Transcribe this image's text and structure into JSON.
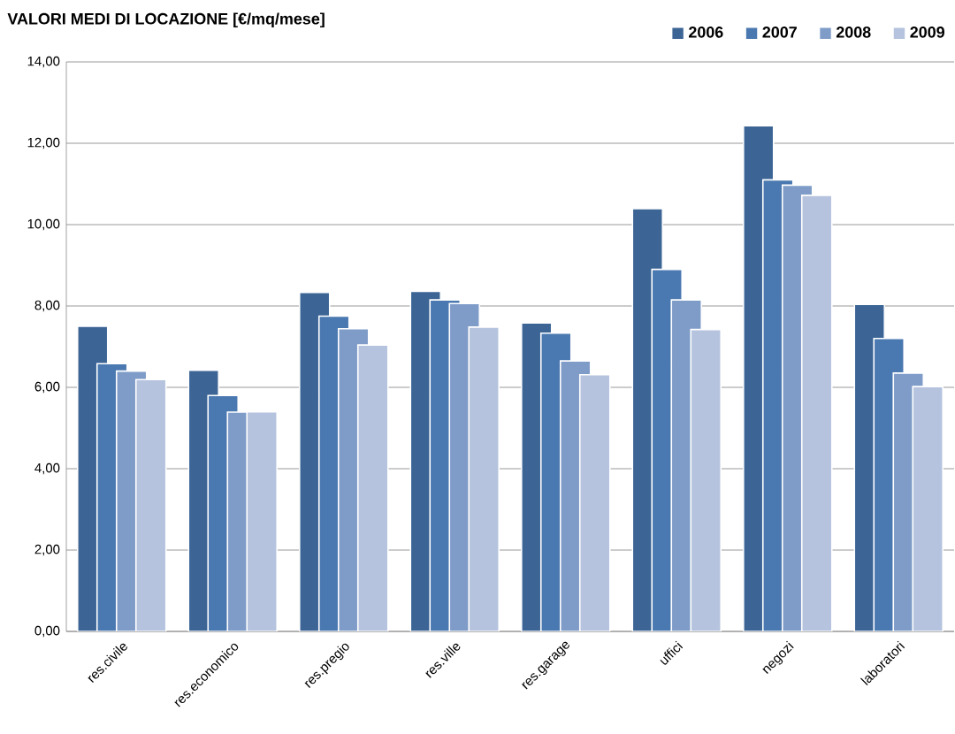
{
  "chart_data": {
    "type": "bar",
    "title": "VALORI MEDI DI LOCAZIONE [€/mq/mese]",
    "categories": [
      "res.civile",
      "res.economico",
      "res.pregio",
      "res.ville",
      "res.garage",
      "uffici",
      "negozi",
      "laboratori"
    ],
    "series": [
      {
        "name": "2006",
        "color": "#3c6596",
        "values": [
          7.5,
          6.42,
          8.33,
          8.36,
          7.58,
          10.39,
          12.43,
          8.04
        ]
      },
      {
        "name": "2007",
        "color": "#4a78b0",
        "values": [
          6.58,
          5.8,
          7.75,
          8.15,
          7.33,
          8.9,
          11.1,
          7.2
        ]
      },
      {
        "name": "2008",
        "color": "#7f9cc8",
        "values": [
          6.4,
          5.39,
          7.44,
          8.06,
          6.65,
          8.15,
          10.97,
          6.35
        ]
      },
      {
        "name": "2009",
        "color": "#b5c3de",
        "values": [
          6.19,
          5.4,
          7.04,
          7.48,
          6.31,
          7.42,
          10.72,
          6.02
        ]
      }
    ],
    "ylim": [
      0,
      14
    ],
    "yticks": [
      {
        "value": 0,
        "label": "0,00"
      },
      {
        "value": 2,
        "label": "2,00"
      },
      {
        "value": 4,
        "label": "4,00"
      },
      {
        "value": 6,
        "label": "6,00"
      },
      {
        "value": 8,
        "label": "8,00"
      },
      {
        "value": 10,
        "label": "10,00"
      },
      {
        "value": 12,
        "label": "12,00"
      },
      {
        "value": 14,
        "label": "14,00"
      }
    ],
    "grid": "y",
    "legend": "top right"
  }
}
